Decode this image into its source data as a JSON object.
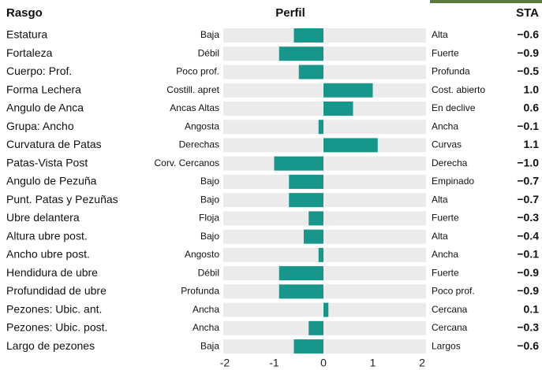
{
  "chart_data": {
    "type": "bar",
    "orientation": "horizontal",
    "column_headers": [
      "Rasgo",
      "Perfil",
      "STA"
    ],
    "categories": [
      "Estatura",
      "Fortaleza",
      "Cuerpo: Prof.",
      "Forma Lechera",
      "Angulo de Anca",
      "Grupa: Ancho",
      "Curvatura de Patas",
      "Patas-Vista Post",
      "Angulo de Pezuña",
      "Punt. Patas y Pezuñas",
      "Ubre delantera",
      "Altura ubre post.",
      "Ancho ubre post.",
      "Hendidura de ubre",
      "Profundidad de ubre",
      "Pezones: Ubic. ant.",
      "Pezones: Ubic. post.",
      "Largo de pezones"
    ],
    "low_labels": [
      "Baja",
      "Débil",
      "Poco prof.",
      "Costill. apret",
      "Ancas Altas",
      "Angosta",
      "Derechas",
      "Corv. Cercanos",
      "Bajo",
      "Bajo",
      "Floja",
      "Bajo",
      "Angosto",
      "Débil",
      "Profunda",
      "Ancha",
      "Ancha",
      "Baja"
    ],
    "high_labels": [
      "Alta",
      "Fuerte",
      "Profunda",
      "Cost. abierto",
      "En declive",
      "Ancha",
      "Curvas",
      "Derecha",
      "Empinado",
      "Alta",
      "Fuerte",
      "Alta",
      "Ancha",
      "Fuerte",
      "Poco prof.",
      "Cercana",
      "Cercana",
      "Largos"
    ],
    "values": [
      -0.6,
      -0.9,
      -0.5,
      1.0,
      0.6,
      -0.1,
      1.1,
      -1.0,
      -0.7,
      -0.7,
      -0.3,
      -0.4,
      -0.1,
      -0.9,
      -0.9,
      0.1,
      -0.3,
      -0.6
    ],
    "value_labels": [
      "−0.6",
      "−0.9",
      "−0.5",
      "1.0",
      "0.6",
      "−0.1",
      "1.1",
      "−1.0",
      "−0.7",
      "−0.7",
      "−0.3",
      "−0.4",
      "−0.1",
      "−0.9",
      "−0.9",
      "0.1",
      "−0.3",
      "−0.6"
    ],
    "color": "#17968b",
    "xlim": [
      -2,
      2
    ],
    "xticks": [
      -2,
      -1,
      0,
      1,
      2
    ]
  }
}
